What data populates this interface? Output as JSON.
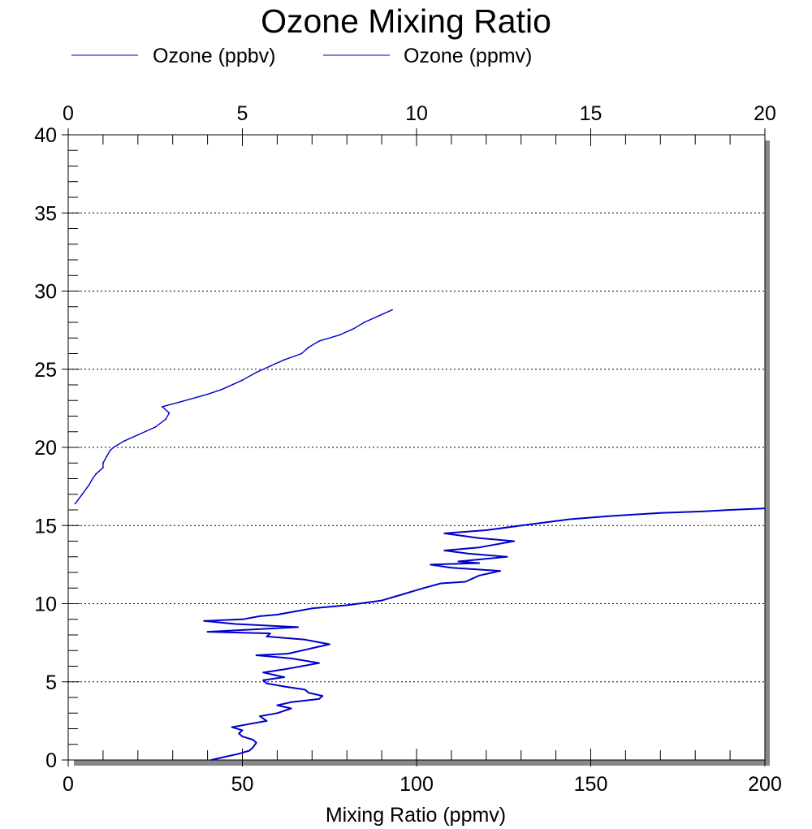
{
  "chart_data": {
    "type": "line",
    "title": "Ozone Mixing Ratio",
    "xlabel": "Mixing Ratio (ppmv)",
    "ylabel": "",
    "bottom_axis": {
      "xlim": [
        0,
        200
      ],
      "ticks": [
        "0",
        "50",
        "100",
        "150",
        "200"
      ]
    },
    "top_axis": {
      "xlim": [
        0,
        20
      ],
      "ticks": [
        "0",
        "5",
        "10",
        "15",
        "20"
      ]
    },
    "y_axis": {
      "ylim": [
        0,
        40
      ],
      "ticks": [
        "0",
        "5",
        "10",
        "15",
        "20",
        "25",
        "30",
        "35",
        "40"
      ]
    },
    "grid": "horizontal dotted",
    "legend_position": "top-left",
    "series": [
      {
        "name": "Ozone (ppbv)",
        "axis": "bottom",
        "color": "#0000cc",
        "points": [
          [
            41,
            0
          ],
          [
            45,
            0.2
          ],
          [
            49,
            0.4
          ],
          [
            52,
            0.6
          ],
          [
            53,
            0.8
          ],
          [
            54,
            1.1
          ],
          [
            53,
            1.3
          ],
          [
            50,
            1.5
          ],
          [
            49,
            1.7
          ],
          [
            50,
            1.9
          ],
          [
            47,
            2.1
          ],
          [
            52,
            2.3
          ],
          [
            57,
            2.5
          ],
          [
            55,
            2.8
          ],
          [
            60,
            3.0
          ],
          [
            64,
            3.3
          ],
          [
            60,
            3.5
          ],
          [
            64,
            3.7
          ],
          [
            72,
            3.9
          ],
          [
            73,
            4.1
          ],
          [
            69,
            4.3
          ],
          [
            68,
            4.5
          ],
          [
            62,
            4.7
          ],
          [
            57,
            4.9
          ],
          [
            56,
            5.1
          ],
          [
            62,
            5.3
          ],
          [
            56,
            5.6
          ],
          [
            62,
            5.8
          ],
          [
            72,
            6.2
          ],
          [
            64,
            6.5
          ],
          [
            54,
            6.7
          ],
          [
            63,
            6.8
          ],
          [
            75,
            7.4
          ],
          [
            68,
            7.7
          ],
          [
            57,
            7.9
          ],
          [
            58,
            8.1
          ],
          [
            40,
            8.2
          ],
          [
            66,
            8.5
          ],
          [
            48,
            8.7
          ],
          [
            39,
            8.9
          ],
          [
            50,
            9.0
          ],
          [
            55,
            9.2
          ],
          [
            60,
            9.3
          ],
          [
            65,
            9.5
          ],
          [
            70,
            9.7
          ],
          [
            80,
            9.9
          ],
          [
            90,
            10.2
          ],
          [
            96,
            10.6
          ],
          [
            102,
            11.0
          ],
          [
            107,
            11.3
          ],
          [
            114,
            11.4
          ],
          [
            118,
            11.8
          ],
          [
            124,
            12.1
          ],
          [
            110,
            12.3
          ],
          [
            104,
            12.5
          ],
          [
            118,
            12.6
          ],
          [
            112,
            12.7
          ],
          [
            126,
            13.0
          ],
          [
            115,
            13.2
          ],
          [
            108,
            13.4
          ],
          [
            118,
            13.6
          ],
          [
            128,
            14.0
          ],
          [
            118,
            14.2
          ],
          [
            108,
            14.5
          ],
          [
            120,
            14.7
          ],
          [
            130,
            15.0
          ],
          [
            137,
            15.2
          ],
          [
            144,
            15.4
          ],
          [
            155,
            15.6
          ],
          [
            170,
            15.8
          ],
          [
            182,
            15.9
          ],
          [
            190,
            16.0
          ],
          [
            200,
            16.1
          ]
        ]
      },
      {
        "name": "Ozone (ppmv)",
        "axis": "top",
        "color": "#0000cc",
        "points": [
          [
            0.2,
            16.4
          ],
          [
            0.4,
            17.0
          ],
          [
            0.6,
            17.6
          ],
          [
            0.7,
            18.0
          ],
          [
            0.8,
            18.3
          ],
          [
            1.0,
            18.7
          ],
          [
            1.0,
            19.0
          ],
          [
            1.1,
            19.4
          ],
          [
            1.2,
            19.8
          ],
          [
            1.3,
            20.0
          ],
          [
            1.6,
            20.4
          ],
          [
            2.0,
            20.8
          ],
          [
            2.5,
            21.3
          ],
          [
            2.8,
            21.8
          ],
          [
            2.9,
            22.2
          ],
          [
            2.7,
            22.6
          ],
          [
            3.2,
            22.9
          ],
          [
            4.0,
            23.4
          ],
          [
            4.4,
            23.7
          ],
          [
            5.0,
            24.3
          ],
          [
            5.4,
            24.8
          ],
          [
            5.8,
            25.2
          ],
          [
            6.2,
            25.6
          ],
          [
            6.7,
            26.0
          ],
          [
            6.9,
            26.4
          ],
          [
            7.2,
            26.8
          ],
          [
            7.8,
            27.2
          ],
          [
            8.2,
            27.6
          ],
          [
            8.5,
            28.0
          ],
          [
            8.9,
            28.4
          ],
          [
            9.3,
            28.8
          ]
        ]
      }
    ]
  }
}
